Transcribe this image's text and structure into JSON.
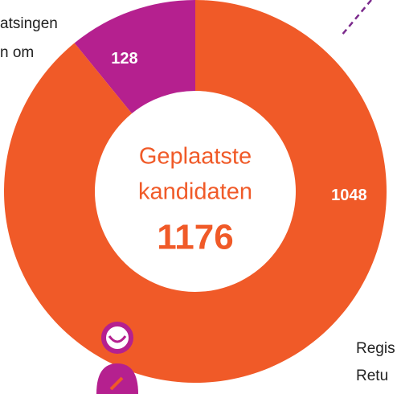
{
  "chart_data": {
    "type": "donut",
    "center_label": [
      "Geplaatste",
      "kandidaten"
    ],
    "total": 1176,
    "values": [
      128,
      1048
    ],
    "colors": [
      "#b5208f",
      "#f05a28"
    ],
    "annotations": [
      "atsingen",
      "n om",
      "Regis",
      "Retu"
    ]
  }
}
